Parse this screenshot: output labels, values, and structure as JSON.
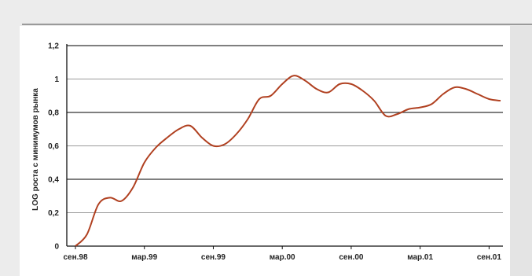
{
  "chart_data": {
    "type": "line",
    "title": "",
    "xlabel": "",
    "ylabel": "LOG роста с минимумов рынка",
    "ylim": [
      0,
      1.2
    ],
    "yticks": [
      "0",
      "0,2",
      "0,4",
      "0,6",
      "0,8",
      "1",
      "1,2"
    ],
    "x_tick_labels": [
      "сен.98",
      "мар.99",
      "сен.99",
      "мар.00",
      "сен.00",
      "мар.01",
      "сен.01"
    ],
    "grid": true,
    "series": [
      {
        "color": "#b04020",
        "values": [
          0.0,
          0.07,
          0.25,
          0.29,
          0.27,
          0.35,
          0.5,
          0.59,
          0.65,
          0.7,
          0.72,
          0.65,
          0.6,
          0.61,
          0.67,
          0.76,
          0.88,
          0.9,
          0.97,
          1.02,
          0.99,
          0.94,
          0.92,
          0.97,
          0.97,
          0.93,
          0.87,
          0.78,
          0.79,
          0.82,
          0.83,
          0.85,
          0.91,
          0.95,
          0.94,
          0.91,
          0.88,
          0.87
        ]
      }
    ]
  }
}
